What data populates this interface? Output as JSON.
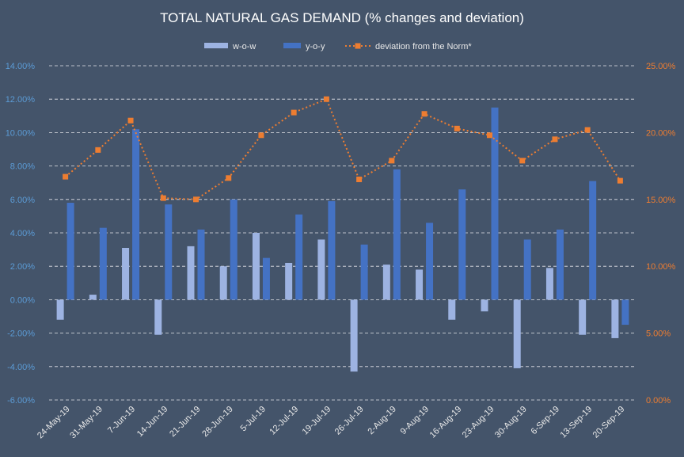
{
  "chart_data": {
    "type": "bar",
    "title": "TOTAL NATURAL GAS DEMAND (% changes and deviation)",
    "categories": [
      "24-May-19",
      "31-May-19",
      "7-Jun-19",
      "14-Jun-19",
      "21-Jun-19",
      "28-Jun-19",
      "5-Jul-19",
      "12-Jul-19",
      "19-Jul-19",
      "26-Jul-19",
      "2-Aug-19",
      "9-Aug-19",
      "16-Aug-19",
      "23-Aug-19",
      "30-Aug-19",
      "6-Sep-19",
      "13-Sep-19",
      "20-Sep-19"
    ],
    "series": [
      {
        "name": "w-o-w",
        "kind": "bar",
        "axis": "left",
        "color": "#9db3e2",
        "values": [
          -1.2,
          0.3,
          3.1,
          -2.1,
          3.2,
          2.0,
          4.0,
          2.2,
          3.6,
          -4.3,
          2.1,
          1.8,
          -1.2,
          -0.7,
          -4.1,
          1.9,
          -2.1,
          -2.3
        ]
      },
      {
        "name": "y-o-y",
        "kind": "bar",
        "axis": "left",
        "color": "#4472c4",
        "values": [
          5.8,
          4.3,
          10.2,
          5.7,
          4.2,
          6.0,
          2.5,
          5.1,
          5.9,
          3.3,
          7.8,
          4.6,
          6.6,
          11.5,
          3.6,
          4.2,
          7.1,
          -1.5
        ]
      },
      {
        "name": "deviation from the Norm*",
        "kind": "line",
        "axis": "right",
        "color": "#ed7d31",
        "values": [
          16.7,
          18.7,
          20.9,
          15.1,
          15.0,
          16.6,
          19.8,
          21.5,
          22.5,
          16.5,
          17.9,
          21.4,
          20.3,
          19.8,
          17.9,
          19.5,
          20.2,
          16.4
        ]
      }
    ],
    "y_left": {
      "min": -6,
      "max": 14,
      "step": 2,
      "tick_labels": [
        "-6.00%",
        "-4.00%",
        "-2.00%",
        "0.00%",
        "2.00%",
        "4.00%",
        "6.00%",
        "8.00%",
        "10.00%",
        "12.00%",
        "14.00%"
      ]
    },
    "y_right": {
      "min": 0,
      "max": 25,
      "step": 5,
      "tick_labels": [
        "0.00%",
        "5.00%",
        "10.00%",
        "15.00%",
        "20.00%",
        "25.00%"
      ]
    },
    "grid": true,
    "legend_position": "top-center",
    "colors": {
      "background": "#44546a",
      "left_axis": "#5b9bd5",
      "right_axis": "#ed7d31"
    }
  }
}
